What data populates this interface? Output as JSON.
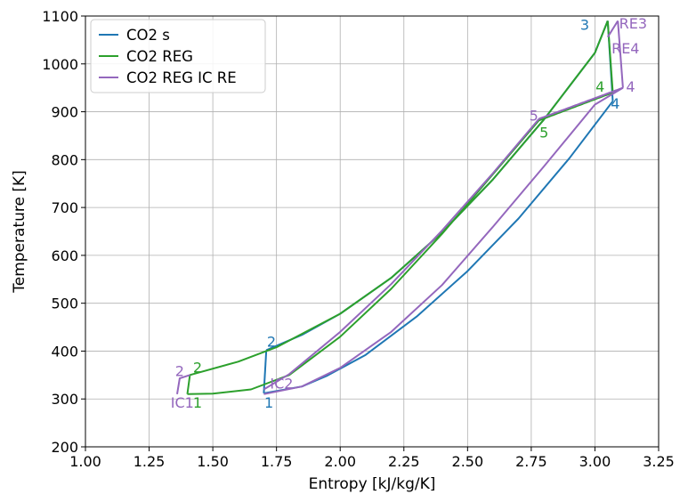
{
  "chart_data": {
    "type": "line",
    "xlabel": "Entropy [kJ/kg/K]",
    "ylabel": "Temperature [K]",
    "xlim": [
      1.0,
      3.25
    ],
    "ylim": [
      200,
      1100
    ],
    "xticks": [
      1.0,
      1.25,
      1.5,
      1.75,
      2.0,
      2.25,
      2.5,
      2.75,
      3.0,
      3.25
    ],
    "xtick_labels": [
      "1.00",
      "1.25",
      "1.50",
      "1.75",
      "2.00",
      "2.25",
      "2.50",
      "2.75",
      "3.00",
      "3.25"
    ],
    "yticks": [
      200,
      300,
      400,
      500,
      600,
      700,
      800,
      900,
      1000,
      1100
    ],
    "ytick_labels": [
      "200",
      "300",
      "400",
      "500",
      "600",
      "700",
      "800",
      "900",
      "1000",
      "1100"
    ],
    "grid": true,
    "legend_position": "top-left",
    "series": [
      {
        "name": "CO2 s",
        "color": "#1f77b4",
        "segments": [
          [
            [
              1.7,
              312
            ],
            [
              1.71,
              402
            ]
          ],
          [
            [
              1.71,
              402
            ],
            [
              1.85,
              434
            ],
            [
              2.0,
              478
            ],
            [
              2.2,
              553
            ],
            [
              2.4,
              648
            ],
            [
              2.6,
              759
            ],
            [
              2.8,
              884
            ],
            [
              3.0,
              1023
            ],
            [
              3.05,
              1090
            ]
          ],
          [
            [
              3.05,
              1090
            ],
            [
              3.07,
              922
            ]
          ],
          [
            [
              3.07,
              922
            ],
            [
              2.9,
              803
            ],
            [
              2.7,
              677
            ],
            [
              2.5,
              567
            ],
            [
              2.3,
              472
            ],
            [
              2.1,
              392
            ],
            [
              1.95,
              349
            ],
            [
              1.85,
              326
            ],
            [
              1.7,
              312
            ]
          ]
        ],
        "point_labels": [
          {
            "text": "1",
            "x": 1.72,
            "y": 290
          },
          {
            "text": "2",
            "x": 1.73,
            "y": 418
          },
          {
            "text": "3",
            "x": 2.96,
            "y": 1080
          },
          {
            "text": "4",
            "x": 3.08,
            "y": 915
          }
        ]
      },
      {
        "name": "CO2 REG",
        "color": "#2ca02c",
        "segments": [
          [
            [
              1.4,
              310
            ],
            [
              1.41,
              350
            ],
            [
              1.6,
              378
            ],
            [
              1.75,
              408
            ],
            [
              2.0,
              478
            ],
            [
              2.2,
              553
            ],
            [
              2.4,
              648
            ],
            [
              2.6,
              759
            ],
            [
              2.8,
              884
            ],
            [
              3.0,
              1023
            ],
            [
              3.05,
              1090
            ]
          ],
          [
            [
              3.05,
              1090
            ],
            [
              3.07,
              940
            ]
          ],
          [
            [
              3.07,
              940
            ],
            [
              2.78,
              882
            ]
          ],
          [
            [
              2.78,
              882
            ],
            [
              2.6,
              770
            ],
            [
              2.4,
              645
            ],
            [
              2.2,
              530
            ],
            [
              2.0,
              430
            ],
            [
              1.8,
              350
            ],
            [
              1.65,
              320
            ],
            [
              1.5,
              311
            ],
            [
              1.4,
              310
            ]
          ]
        ],
        "dashed_segments": [
          [
            [
              2.78,
              882
            ],
            [
              3.07,
              940
            ]
          ]
        ],
        "point_labels": [
          {
            "text": "1",
            "x": 1.44,
            "y": 290
          },
          {
            "text": "2",
            "x": 1.44,
            "y": 364
          },
          {
            "text": "4",
            "x": 3.02,
            "y": 950
          },
          {
            "text": "5",
            "x": 2.8,
            "y": 855
          }
        ]
      },
      {
        "name": "CO2 REG IC RE",
        "color": "#9467bd",
        "segments": [
          [
            [
              1.36,
              310
            ],
            [
              1.37,
              343
            ],
            [
              1.41,
              350
            ]
          ],
          [
            [
              1.7,
              310
            ],
            [
              1.85,
              326
            ],
            [
              2.0,
              365
            ],
            [
              2.2,
              440
            ],
            [
              2.4,
              538
            ],
            [
              2.6,
              660
            ],
            [
              2.8,
              786
            ],
            [
              3.0,
              915
            ],
            [
              3.11,
              950
            ]
          ],
          [
            [
              3.11,
              950
            ],
            [
              3.09,
              1090
            ]
          ],
          [
            [
              3.09,
              1090
            ],
            [
              3.05,
              1056
            ]
          ],
          [
            [
              3.11,
              950
            ],
            [
              2.78,
              885
            ]
          ],
          [
            [
              2.78,
              885
            ],
            [
              2.6,
              772
            ],
            [
              2.4,
              652
            ],
            [
              2.2,
              540
            ],
            [
              2.0,
              440
            ],
            [
              1.8,
              352
            ],
            [
              1.7,
              320
            ]
          ]
        ],
        "dashed_segments": [
          [
            [
              2.78,
              885
            ],
            [
              3.11,
              950
            ]
          ]
        ],
        "point_labels": [
          {
            "text": "IC1",
            "x": 1.38,
            "y": 290
          },
          {
            "text": "2",
            "x": 1.37,
            "y": 356
          },
          {
            "text": "IC2",
            "x": 1.77,
            "y": 330
          },
          {
            "text": "5",
            "x": 2.76,
            "y": 890
          },
          {
            "text": "4",
            "x": 3.14,
            "y": 950
          },
          {
            "text": "RE3",
            "x": 3.15,
            "y": 1082
          },
          {
            "text": "RE4",
            "x": 3.12,
            "y": 1030
          }
        ]
      }
    ]
  }
}
